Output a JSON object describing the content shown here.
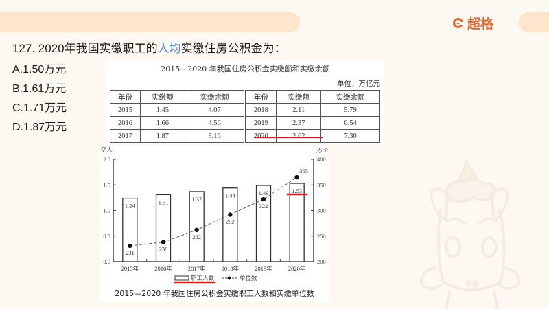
{
  "header": {
    "brand": "超格",
    "brand_color": "#e8652e",
    "band_color": "#fde6cc"
  },
  "question": {
    "prefix": "127. 2020年我国实缴职工的",
    "highlight": "人均",
    "suffix": "实缴住房公积金为：",
    "highlight_color": "#4a90d9"
  },
  "options": [
    {
      "label": "A.1.50万元"
    },
    {
      "label": "B.1.61万元"
    },
    {
      "label": "C.1.71万元"
    },
    {
      "label": "D.1.87万元"
    }
  ],
  "table": {
    "title": "2015—2020 年我国住房公积金实缴额和实缴余额",
    "unit": "单位：万亿元",
    "headers": [
      "年份",
      "实缴额",
      "实缴余额",
      "年份",
      "实缴额",
      "实缴余额"
    ],
    "rows": [
      [
        "2015",
        "1.45",
        "4.07",
        "2018",
        "2.11",
        "5.79"
      ],
      [
        "2016",
        "1.66",
        "4.56",
        "2019",
        "2.37",
        "6.54"
      ],
      [
        "2017",
        "1.87",
        "5.16",
        "2020",
        "2.62",
        "7.30"
      ]
    ]
  },
  "chart": {
    "title": "2015—2020 年我国住房公积金实缴职工人数和实缴单位数",
    "left_unit": "亿人",
    "right_unit": "万个",
    "legend_bar": "职工人数",
    "legend_line": "单位数"
  },
  "chart_data": {
    "type": "bar",
    "title": "2015—2020 年我国住房公积金实缴职工人数和实缴单位数",
    "categories": [
      "2015年",
      "2016年",
      "2017年",
      "2018年",
      "2019年",
      "2020年"
    ],
    "series": [
      {
        "name": "职工人数",
        "type": "bar",
        "axis": "left",
        "unit": "亿人",
        "values": [
          1.24,
          1.31,
          1.37,
          1.44,
          1.49,
          1.53
        ]
      },
      {
        "name": "单位数",
        "type": "line",
        "axis": "right",
        "unit": "万个",
        "values": [
          231,
          238,
          262,
          292,
          322,
          365
        ]
      }
    ],
    "left_ylim": [
      0.0,
      2.0
    ],
    "left_ticks": [
      "0.0",
      "0.5",
      "1.0",
      "1.5",
      "2.0"
    ],
    "right_ylim": [
      200,
      400
    ],
    "right_ticks": [
      "200",
      "250",
      "300",
      "350",
      "400"
    ],
    "ylabel_left": "亿人",
    "ylabel_right": "万个",
    "legend_position": "bottom",
    "grid": false
  }
}
